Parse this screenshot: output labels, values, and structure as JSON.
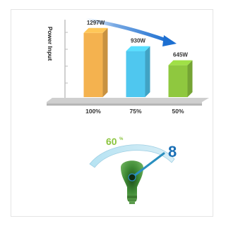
{
  "chart_data": {
    "type": "bar",
    "ylabel": "Power Input",
    "categories": [
      "100%",
      "75%",
      "50%"
    ],
    "values": [
      1297,
      930,
      645
    ],
    "value_labels": [
      "1297W",
      "930W",
      "645W"
    ],
    "ylim": [
      0,
      1450
    ],
    "colors": [
      "#f4b24f",
      "#4fc7ef",
      "#8fc83f"
    ],
    "trend_arrow_color": "#1d6fd1"
  },
  "gauge": {
    "percent_value": "60",
    "percent_symbol": "%",
    "level_value": "8",
    "level_fraction": 0.85,
    "arc_color": "#b6e3f3",
    "needle_color": "#2a8fbf",
    "level_color": "#1a6fb5",
    "percent_color": "#8cc53f",
    "bulb_color": "#2f7a2a"
  }
}
